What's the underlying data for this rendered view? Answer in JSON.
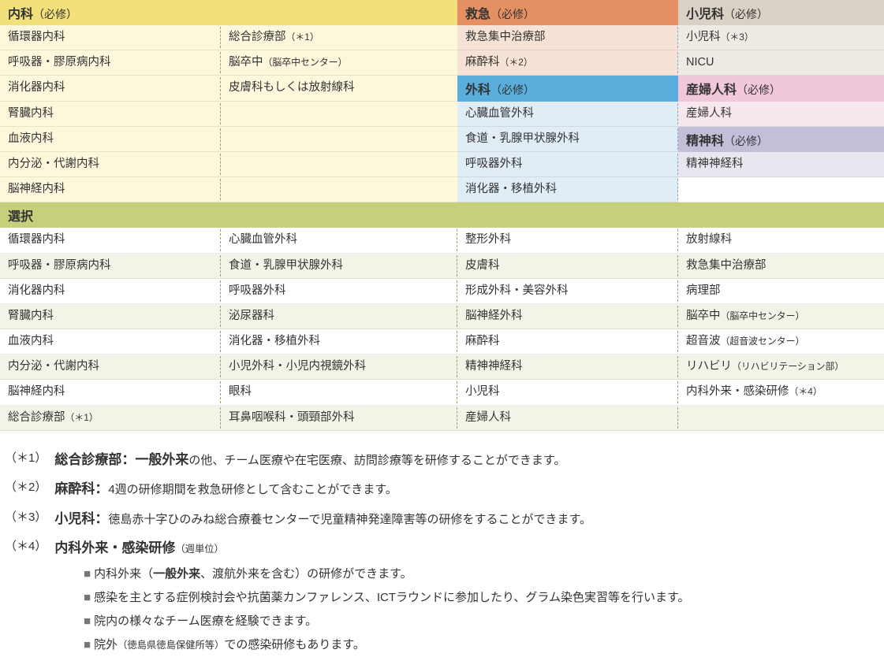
{
  "colors": {
    "naika_hdr": "#f2e07a",
    "naika_body": "#fdf7dc",
    "kyukyu_hdr": "#e59062",
    "kyukyu_body": "#f7e3d5",
    "shonika_hdr": "#d9d0c6",
    "shonika_body": "#eeeae4",
    "geka_hdr": "#5aaedc",
    "geka_body": "#e0edf4",
    "sanfujin_hdr": "#f1c7da",
    "sanfujin_body": "#f7e8ef",
    "seishin_hdr": "#c4bfd9",
    "seishin_body": "#e8e6ef",
    "elective_hdr": "#c6d07a",
    "elective_even": "#f3f4e8",
    "elective_odd": "#ffffff",
    "text": "#333333"
  },
  "headers": {
    "naika": "内科",
    "req": "（必修）",
    "kyukyu": "救急",
    "shonika": "小児科",
    "geka": "外科",
    "sanfujin": "産婦人科",
    "seishin": "精神科",
    "elective": "選択"
  },
  "naika_col1": [
    "循環器内科",
    "呼吸器・膠原病内科",
    "消化器内科",
    "腎臓内科",
    "血液内科",
    "内分泌・代謝内科",
    "脳神経内科"
  ],
  "naika_col2": [
    "総合診療部（＊1）",
    "脳卒中（脳卒中センター）",
    "皮膚科もしくは放射線科",
    "",
    "",
    "",
    ""
  ],
  "kyukyu_rows": [
    "救急集中治療部",
    "麻酔科（＊2）"
  ],
  "shonika_rows": [
    "小児科（＊3）",
    "NICU"
  ],
  "geka_rows": [
    "心臓血管外科",
    "食道・乳腺甲状腺外科",
    "呼吸器外科",
    "消化器・移植外科"
  ],
  "sanfujin_rows": [
    "産婦人科"
  ],
  "seishin_rows": [
    "精神神経科"
  ],
  "elective": [
    [
      "循環器内科",
      "心臓血管外科",
      "整形外科",
      "放射線科"
    ],
    [
      "呼吸器・膠原病内科",
      "食道・乳腺甲状腺外科",
      "皮膚科",
      "救急集中治療部"
    ],
    [
      "消化器内科",
      "呼吸器外科",
      "形成外科・美容外科",
      "病理部"
    ],
    [
      "腎臓内科",
      "泌尿器科",
      "脳神経外科",
      "脳卒中（脳卒中センター）"
    ],
    [
      "血液内科",
      "消化器・移植外科",
      "麻酔科",
      "超音波（超音波センター）"
    ],
    [
      "内分泌・代謝内科",
      "小児外科・小児内視鏡外科",
      "精神神経科",
      "リハビリ（リハビリテーション部）"
    ],
    [
      "脳神経内科",
      "眼科",
      "小児科",
      "内科外来・感染研修（＊4）"
    ],
    [
      "総合診療部（＊1）",
      "耳鼻咽喉科・頭頸部外科",
      "産婦人科",
      ""
    ]
  ],
  "notes": {
    "n1_tag": "（＊1）",
    "n1_bold": "総合診療部：",
    "n1_bold2": "一般外来",
    "n1_rest": "の他、チーム医療や在宅医療、訪問診療等を研修することができます。",
    "n2_tag": "（＊2）",
    "n2_bold": "麻酔科：",
    "n2_rest": "4週の研修期間を救急研修として含むことができます。",
    "n3_tag": "（＊3）",
    "n3_bold": "小児科：",
    "n3_rest": "徳島赤十字ひのみね総合療養センターで児童精神発達障害等の研修をすることができます。",
    "n4_tag": "（＊4）",
    "n4_bold": "内科外来・感染研修",
    "n4_paren": "（週単位）",
    "n4_items": [
      {
        "pre": "内科外来（",
        "bold": "一般外来",
        "post": "、渡航外来を含む）の研修ができます。"
      },
      {
        "text": "感染を主とする症例検討会や抗菌薬カンファレンス、ICTラウンドに参加したり、グラム染色実習等を行います。"
      },
      {
        "text": "院内の様々なチーム医療を経験できます。"
      },
      {
        "text": "院外（徳島県徳島保健所等）での感染研修もあります。"
      }
    ]
  }
}
